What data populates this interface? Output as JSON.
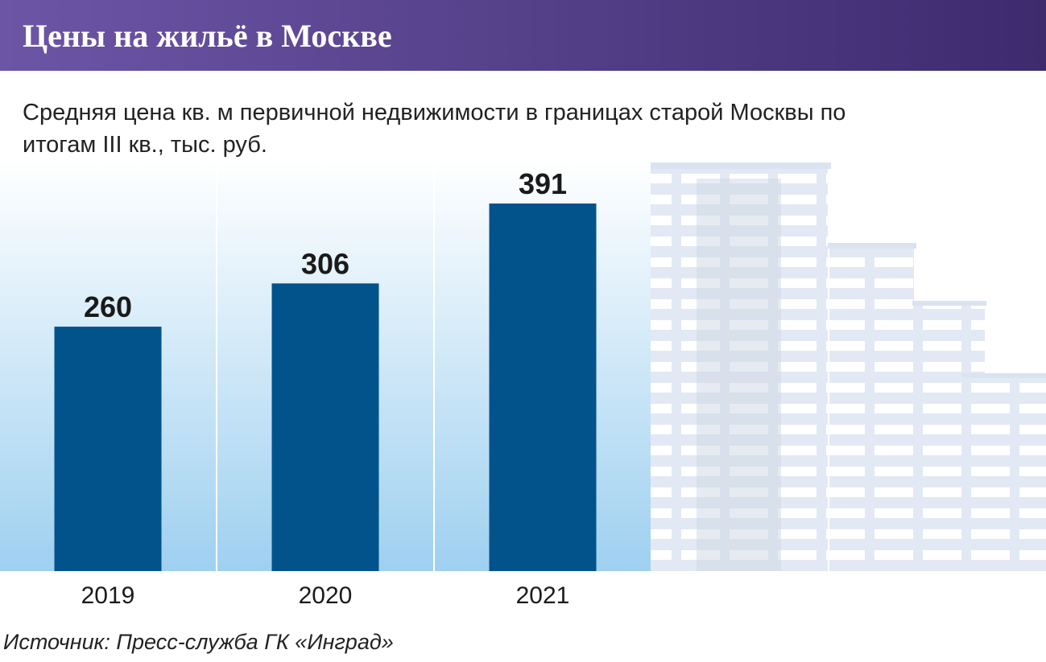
{
  "chart_data": {
    "type": "bar",
    "title": "Цены на жильё в Москве",
    "subtitle": "Средняя цена кв. м первичной недвижимости в границах старой Москвы по итогам III кв., тыс. руб.",
    "categories": [
      "2019",
      "2020",
      "2021"
    ],
    "values": [
      260,
      306,
      391
    ],
    "color": "#02538c",
    "source": "Источник: Пресс-служба ГК «Инград»"
  }
}
